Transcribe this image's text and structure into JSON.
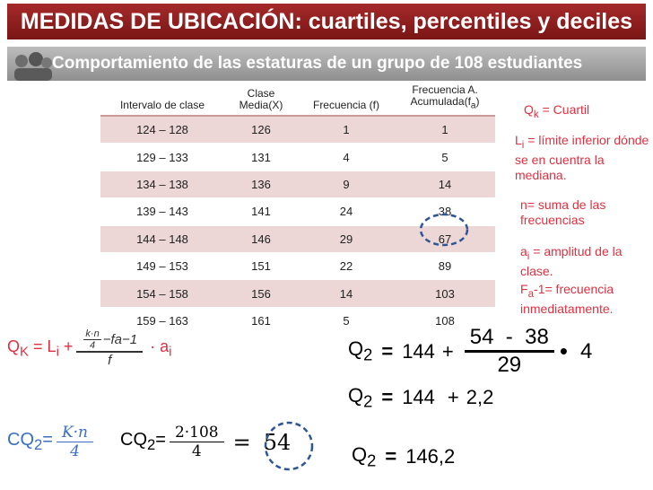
{
  "header": {
    "title": "MEDIDAS DE UBICACIÓN: cuartiles, percentiles y deciles",
    "subtitle": "Comportamiento de las estaturas de un grupo de 108 estudiantes"
  },
  "table": {
    "columns": [
      [
        "Intervalo de clase"
      ],
      [
        "Clase Media(X)"
      ],
      [
        "Frecuencia (f)"
      ],
      [
        "Frecuencia A. Acumulada(f",
        "a",
        ")"
      ]
    ],
    "rows": [
      [
        "124 – 128",
        "126",
        "1",
        "1"
      ],
      [
        "129 – 133",
        "131",
        "4",
        "5"
      ],
      [
        "134 – 138",
        "136",
        "9",
        "14"
      ],
      [
        "139 – 143",
        "141",
        "24",
        "38"
      ],
      [
        "144 – 148",
        "146",
        "29",
        "67"
      ],
      [
        "149 – 153",
        "151",
        "22",
        "89"
      ],
      [
        "154 – 158",
        "156",
        "14",
        "103"
      ],
      [
        "159 – 163",
        "161",
        "5",
        "108"
      ]
    ]
  },
  "notes": [
    [
      "Q",
      "k",
      " = Cuartil"
    ],
    [
      "L",
      "i",
      " = límite inferior dónde se en cuentra la mediana."
    ],
    [
      "n= suma de las frecuencias"
    ],
    [
      "a",
      "i",
      " = amplitud de la clase."
    ],
    [
      "F",
      "a",
      "-1= frecuencia inmediatamente."
    ]
  ],
  "formula_general": {
    "lhs": [
      "Q",
      "K",
      " = L",
      "i",
      " +"
    ],
    "num_top": "k·n",
    "num_bottom": "4",
    "num_rest": "−fa−1",
    "den": "f",
    "tail": [
      "· a",
      "i"
    ]
  },
  "formula_cq2": {
    "lhs": [
      "CQ",
      "2",
      "="
    ],
    "num": "K·n",
    "den": "4"
  },
  "formula_cq2_value": {
    "lhs": [
      "CQ",
      "2",
      "="
    ],
    "num": "2·108",
    "den": "4",
    "eq": "=",
    "result": "54"
  },
  "steps": [
    {
      "lhs": [
        "Q",
        "2"
      ],
      "eq": "=",
      "base": "144",
      "plus": "+",
      "num": "54  -  38",
      "den": "29",
      "times": "•",
      "factor": "4"
    },
    {
      "lhs": [
        "Q",
        "2"
      ],
      "eq": "=",
      "base": "144",
      "plus": "+",
      "term": "2,2"
    },
    {
      "lhs": [
        "Q",
        "2"
      ],
      "eq": "=",
      "result": "146,2"
    }
  ]
}
